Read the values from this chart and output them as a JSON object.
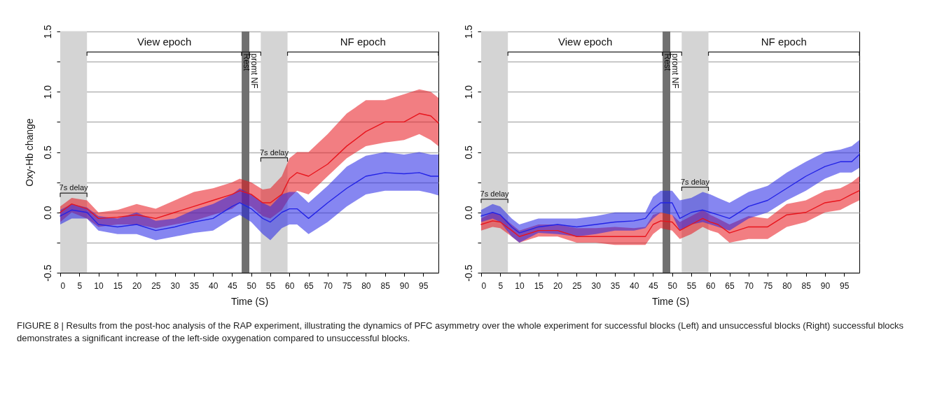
{
  "chart_data": [
    {
      "type": "line",
      "xlabel": "Time (S)",
      "ylabel": "Oxy-Hb change",
      "xlim": [
        0,
        99
      ],
      "ylim": [
        -0.5,
        1.5
      ],
      "xticks": [
        0,
        5,
        10,
        15,
        20,
        25,
        30,
        35,
        40,
        45,
        50,
        55,
        60,
        65,
        70,
        75,
        80,
        85,
        90,
        95
      ],
      "yticks": [
        {
          "value": -0.5,
          "label": "-0.5"
        },
        {
          "value": -0.25,
          "label": null
        },
        {
          "value": 0,
          "label": "0.0"
        },
        {
          "value": 0.25,
          "label": null
        },
        {
          "value": 0.5,
          "label": "0.5"
        },
        {
          "value": 0.75,
          "label": null
        },
        {
          "value": 1,
          "label": "1.0"
        },
        {
          "value": 1.25,
          "label": null
        },
        {
          "value": 1.5,
          "label": "1.5"
        }
      ],
      "grid": "y",
      "x": [
        0,
        3,
        7,
        10,
        15,
        20,
        25,
        30,
        35,
        40,
        45,
        47,
        50,
        53,
        55,
        58,
        60,
        62,
        65,
        70,
        75,
        80,
        85,
        90,
        94,
        97,
        99
      ],
      "series": [
        {
          "color": "#e8141c",
          "values": [
            0.0,
            0.07,
            0.03,
            -0.05,
            -0.04,
            -0.02,
            -0.05,
            0.0,
            0.05,
            0.1,
            0.15,
            0.18,
            0.15,
            0.08,
            0.08,
            0.15,
            0.28,
            0.33,
            0.3,
            0.4,
            0.55,
            0.67,
            0.75,
            0.75,
            0.82,
            0.8,
            0.74
          ],
          "lower": [
            -0.08,
            0.0,
            -0.05,
            -0.12,
            -0.1,
            -0.1,
            -0.13,
            -0.1,
            -0.07,
            -0.02,
            0.03,
            0.08,
            0.05,
            -0.03,
            -0.05,
            0.02,
            0.12,
            0.18,
            0.15,
            0.3,
            0.45,
            0.55,
            0.58,
            0.6,
            0.65,
            0.6,
            0.55
          ],
          "upper": [
            0.05,
            0.12,
            0.1,
            0.0,
            0.02,
            0.07,
            0.03,
            0.1,
            0.17,
            0.2,
            0.25,
            0.28,
            0.25,
            0.19,
            0.2,
            0.3,
            0.45,
            0.5,
            0.5,
            0.65,
            0.82,
            0.93,
            0.93,
            0.98,
            1.02,
            1.0,
            0.95
          ]
        },
        {
          "color": "#2323e6",
          "values": [
            -0.03,
            0.02,
            0.0,
            -0.1,
            -0.12,
            -0.1,
            -0.15,
            -0.12,
            -0.08,
            -0.05,
            0.05,
            0.08,
            0.03,
            -0.05,
            -0.08,
            0.0,
            0.03,
            0.03,
            -0.05,
            0.08,
            0.2,
            0.3,
            0.33,
            0.32,
            0.33,
            0.3,
            0.3
          ],
          "lower": [
            -0.1,
            -0.05,
            -0.05,
            -0.15,
            -0.18,
            -0.18,
            -0.23,
            -0.2,
            -0.17,
            -0.15,
            -0.05,
            -0.02,
            -0.08,
            -0.18,
            -0.23,
            -0.13,
            -0.1,
            -0.1,
            -0.18,
            -0.08,
            0.05,
            0.15,
            0.18,
            0.18,
            0.18,
            0.16,
            0.14
          ],
          "upper": [
            0.02,
            0.07,
            0.04,
            -0.03,
            -0.05,
            0.0,
            -0.07,
            -0.05,
            0.02,
            0.07,
            0.15,
            0.2,
            0.15,
            0.08,
            0.05,
            0.15,
            0.17,
            0.17,
            0.08,
            0.22,
            0.38,
            0.47,
            0.5,
            0.48,
            0.5,
            0.48,
            0.48
          ]
        }
      ],
      "bands": [
        {
          "axis": "x",
          "from": 0,
          "to": 7,
          "color": "#d4d4d4",
          "label": "7s delay"
        },
        {
          "axis": "x",
          "from": 47.5,
          "to": 49.5,
          "color": "#707070",
          "label": "Rest"
        },
        {
          "axis": "x",
          "from": 52.5,
          "to": 59.5,
          "color": "#d4d4d4",
          "label": "7s delay"
        }
      ],
      "annotations": [
        "View epoch",
        "promt NF",
        "NF epoch"
      ]
    },
    {
      "type": "line",
      "xlabel": "Time (S)",
      "xlim": [
        0,
        99
      ],
      "ylim": [
        -0.5,
        1.5
      ],
      "xticks": [
        0,
        5,
        10,
        15,
        20,
        25,
        30,
        35,
        40,
        45,
        50,
        55,
        60,
        65,
        70,
        75,
        80,
        85,
        90,
        95
      ],
      "yticks": [
        {
          "value": -0.5,
          "label": "-0.5"
        },
        {
          "value": -0.25,
          "label": null
        },
        {
          "value": 0,
          "label": "0.0"
        },
        {
          "value": 0.25,
          "label": null
        },
        {
          "value": 0.5,
          "label": "0.5"
        },
        {
          "value": 0.75,
          "label": null
        },
        {
          "value": 1,
          "label": "1.0"
        },
        {
          "value": 1.25,
          "label": null
        },
        {
          "value": 1.5,
          "label": "1.5"
        }
      ],
      "grid": "y",
      "x": [
        0,
        3,
        5,
        8,
        10,
        15,
        20,
        25,
        30,
        35,
        40,
        43,
        45,
        47,
        50,
        52,
        55,
        58,
        60,
        62,
        65,
        70,
        75,
        80,
        85,
        90,
        94,
        97,
        99
      ],
      "series": [
        {
          "color": "#e8141c",
          "values": [
            -0.1,
            -0.07,
            -0.08,
            -0.15,
            -0.2,
            -0.15,
            -0.15,
            -0.2,
            -0.2,
            -0.2,
            -0.2,
            -0.2,
            -0.1,
            -0.07,
            -0.08,
            -0.15,
            -0.1,
            -0.05,
            -0.08,
            -0.1,
            -0.17,
            -0.12,
            -0.12,
            -0.02,
            0.0,
            0.08,
            0.1,
            0.15,
            0.18
          ],
          "lower": [
            -0.15,
            -0.12,
            -0.13,
            -0.2,
            -0.25,
            -0.2,
            -0.2,
            -0.25,
            -0.25,
            -0.27,
            -0.27,
            -0.27,
            -0.18,
            -0.13,
            -0.15,
            -0.22,
            -0.18,
            -0.12,
            -0.15,
            -0.17,
            -0.25,
            -0.22,
            -0.22,
            -0.12,
            -0.08,
            0.0,
            0.02,
            0.07,
            0.1
          ],
          "upper": [
            -0.05,
            0.0,
            -0.02,
            -0.1,
            -0.15,
            -0.1,
            -0.1,
            -0.13,
            -0.13,
            -0.12,
            -0.13,
            -0.12,
            -0.02,
            0.0,
            -0.02,
            -0.08,
            -0.03,
            0.02,
            -0.02,
            -0.05,
            -0.1,
            -0.03,
            -0.05,
            0.07,
            0.1,
            0.18,
            0.2,
            0.25,
            0.3
          ]
        },
        {
          "color": "#2323e6",
          "values": [
            -0.03,
            0.0,
            -0.02,
            -0.12,
            -0.17,
            -0.12,
            -0.1,
            -0.12,
            -0.1,
            -0.08,
            -0.07,
            -0.05,
            0.03,
            0.08,
            0.08,
            -0.05,
            0.0,
            0.02,
            0.0,
            -0.02,
            -0.05,
            0.05,
            0.1,
            0.2,
            0.3,
            0.38,
            0.42,
            0.42,
            0.48
          ],
          "lower": [
            -0.08,
            -0.05,
            -0.08,
            -0.2,
            -0.25,
            -0.17,
            -0.18,
            -0.2,
            -0.18,
            -0.15,
            -0.15,
            -0.13,
            -0.05,
            0.0,
            -0.02,
            -0.15,
            -0.1,
            -0.08,
            -0.1,
            -0.12,
            -0.15,
            -0.05,
            0.0,
            0.1,
            0.18,
            0.28,
            0.33,
            0.33,
            0.37
          ],
          "upper": [
            0.02,
            0.07,
            0.05,
            -0.05,
            -0.1,
            -0.05,
            -0.05,
            -0.05,
            -0.03,
            0.0,
            0.0,
            0.0,
            0.13,
            0.18,
            0.18,
            0.1,
            0.12,
            0.17,
            0.15,
            0.12,
            0.08,
            0.17,
            0.22,
            0.33,
            0.42,
            0.5,
            0.52,
            0.55,
            0.6
          ]
        }
      ],
      "bands": [
        {
          "axis": "x",
          "from": 0,
          "to": 7,
          "color": "#d4d4d4",
          "label": "7s delay"
        },
        {
          "axis": "x",
          "from": 47.5,
          "to": 49.5,
          "color": "#707070",
          "label": "Rest"
        },
        {
          "axis": "x",
          "from": 52.5,
          "to": 59.5,
          "color": "#d4d4d4",
          "label": "7s delay"
        }
      ],
      "annotations": [
        "View epoch",
        "promt NF",
        "NF epoch",
        "FIGURE 8 | Results from the post-hoc analysis of the RAP experiment, illustrating the dynamics of PFC asymmetry over the whole experiment for successful blocks (Left) and unsuccessful blocks (Right) successful blocks demonstrates a significant increase of the left-side oxygenation compared to unsuccessful blocks."
      ]
    }
  ]
}
